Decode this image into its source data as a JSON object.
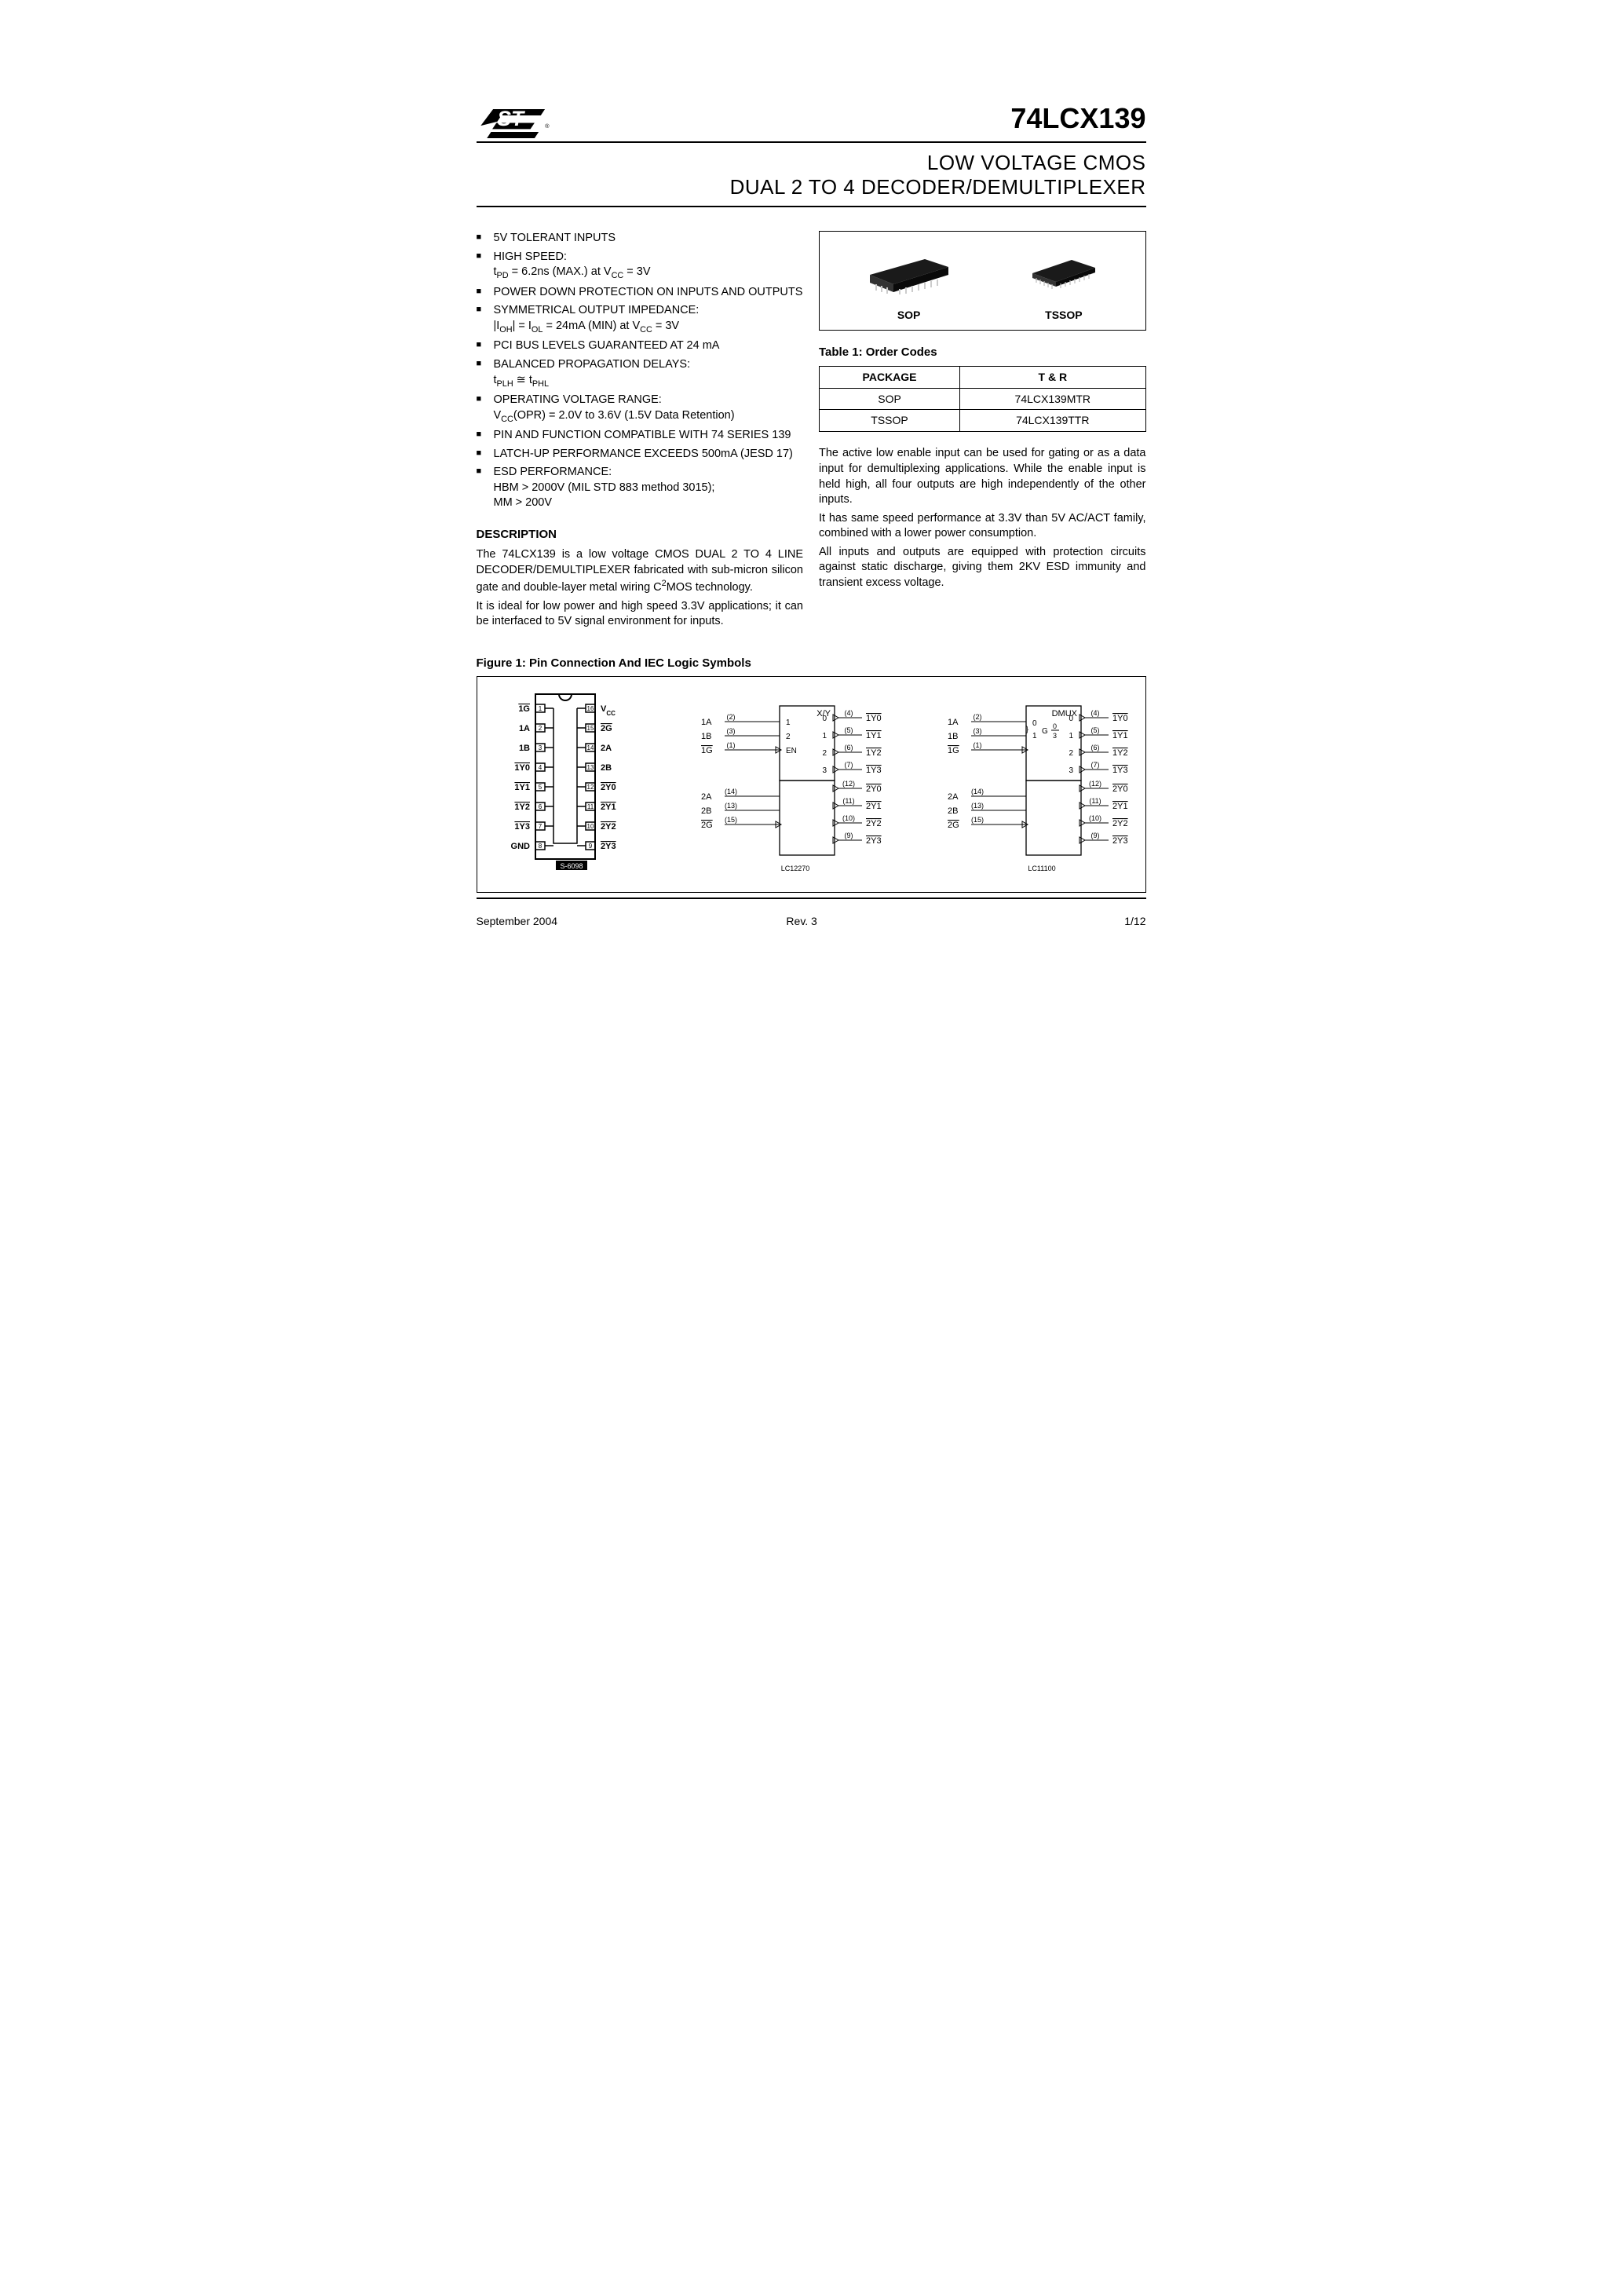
{
  "header": {
    "part_number": "74LCX139",
    "subtitle_line1": "LOW VOLTAGE CMOS",
    "subtitle_line2": "DUAL 2 TO 4 DECODER/DEMULTIPLEXER"
  },
  "features": [
    {
      "main": "5V TOLERANT INPUTS"
    },
    {
      "main": "HIGH SPEED:",
      "sub_html": "t<sub>PD</sub> = 6.2ns (MAX.) at V<sub>CC</sub> = 3V"
    },
    {
      "main": "POWER DOWN PROTECTION ON INPUTS AND OUTPUTS"
    },
    {
      "main": "SYMMETRICAL OUTPUT IMPEDANCE:",
      "sub_html": "|I<sub>OH</sub>| = I<sub>OL</sub> = 24mA (MIN) at V<sub>CC</sub> = 3V"
    },
    {
      "main": "PCI BUS LEVELS GUARANTEED AT 24 mA"
    },
    {
      "main": "BALANCED PROPAGATION DELAYS:",
      "sub_html": "t<sub>PLH</sub> ≅ t<sub>PHL</sub>"
    },
    {
      "main": "OPERATING VOLTAGE RANGE:",
      "sub_html": "V<sub>CC</sub>(OPR) = 2.0V to 3.6V (1.5V Data Retention)"
    },
    {
      "main": "PIN AND FUNCTION COMPATIBLE WITH 74 SERIES 139"
    },
    {
      "main": "LATCH-UP PERFORMANCE EXCEEDS 500mA (JESD 17)"
    },
    {
      "main": "ESD PERFORMANCE:",
      "sub_html": "HBM > 2000V (MIL STD 883 method 3015);<br>MM > 200V"
    }
  ],
  "description": {
    "heading": "DESCRIPTION",
    "para1_html": "The 74LCX139 is a low voltage CMOS DUAL 2 TO 4 LINE DECODER/DEMULTIPLEXER fabricated with sub-micron silicon gate and double-layer metal wiring C<sup>2</sup>MOS technology.",
    "para2": "It is ideal for low power and high speed 3.3V applications; it can be interfaced to 5V signal environment for inputs."
  },
  "packages": {
    "box_label_left": "SOP",
    "box_label_right": "TSSOP",
    "table_caption": "Table 1: Order Codes",
    "columns": [
      "PACKAGE",
      "T & R"
    ],
    "rows": [
      [
        "SOP",
        "74LCX139MTR"
      ],
      [
        "TSSOP",
        "74LCX139TTR"
      ]
    ]
  },
  "right_text": {
    "para1": "The active low enable input can be used for gating or as a data input for demultiplexing applications. While the enable input is held high, all four outputs are high independently of the other inputs.",
    "para2": "It has same speed performance at 3.3V than 5V AC/ACT family, combined with a lower power consumption.",
    "para3": "All inputs and outputs are equipped with protection circuits against static discharge, giving them 2KV ESD immunity and transient excess voltage."
  },
  "figure": {
    "caption": "Figure 1: Pin Connection And IEC Logic Symbols",
    "pinout": {
      "left_pins": [
        {
          "num": 1,
          "label": "1G",
          "overline": true
        },
        {
          "num": 2,
          "label": "1A",
          "overline": false
        },
        {
          "num": 3,
          "label": "1B",
          "overline": false
        },
        {
          "num": 4,
          "label": "1Y0",
          "overline": true
        },
        {
          "num": 5,
          "label": "1Y1",
          "overline": true
        },
        {
          "num": 6,
          "label": "1Y2",
          "overline": true
        },
        {
          "num": 7,
          "label": "1Y3",
          "overline": true
        },
        {
          "num": 8,
          "label": "GND",
          "overline": false
        }
      ],
      "right_pins": [
        {
          "num": 16,
          "label": "VCC",
          "overline": false,
          "sub": true
        },
        {
          "num": 15,
          "label": "2G",
          "overline": true
        },
        {
          "num": 14,
          "label": "2A",
          "overline": false
        },
        {
          "num": 13,
          "label": "2B",
          "overline": false
        },
        {
          "num": 12,
          "label": "2Y0",
          "overline": true
        },
        {
          "num": 11,
          "label": "2Y1",
          "overline": true
        },
        {
          "num": 10,
          "label": "2Y2",
          "overline": true
        },
        {
          "num": 9,
          "label": "2Y3",
          "overline": true
        }
      ],
      "code": "S-6098"
    },
    "iec": {
      "left_inputs": [
        {
          "label": "1A",
          "pin": "(2)",
          "port": "1"
        },
        {
          "label": "1B",
          "pin": "(3)",
          "port": "2"
        },
        {
          "label": "1G",
          "pin": "(1)",
          "port": "EN",
          "overline": true,
          "bubble": true
        },
        {
          "label": "2A",
          "pin": "(14)"
        },
        {
          "label": "2B",
          "pin": "(13)"
        },
        {
          "label": "2G",
          "pin": "(15)",
          "overline": true,
          "bubble": true
        }
      ],
      "outputs": [
        {
          "port": "0",
          "pin": "(4)",
          "label": "1Y0"
        },
        {
          "port": "1",
          "pin": "(5)",
          "label": "1Y1"
        },
        {
          "port": "2",
          "pin": "(6)",
          "label": "1Y2"
        },
        {
          "port": "3",
          "pin": "(7)",
          "label": "1Y3"
        },
        {
          "pin": "(12)",
          "label": "2Y0"
        },
        {
          "pin": "(11)",
          "label": "2Y1"
        },
        {
          "pin": "(10)",
          "label": "2Y2"
        },
        {
          "pin": "(9)",
          "label": "2Y3"
        }
      ],
      "box1_title": "X/Y",
      "box2_title": "DMUX",
      "box2_sub": "G 0/3",
      "code1": "LC12270",
      "code2": "LC11100"
    }
  },
  "footer": {
    "date": "September 2004",
    "rev": "Rev. 3",
    "page": "1/12"
  },
  "colors": {
    "text": "#000000",
    "bg": "#ffffff",
    "rule": "#000000",
    "chip_body": "#2a2a2a"
  }
}
